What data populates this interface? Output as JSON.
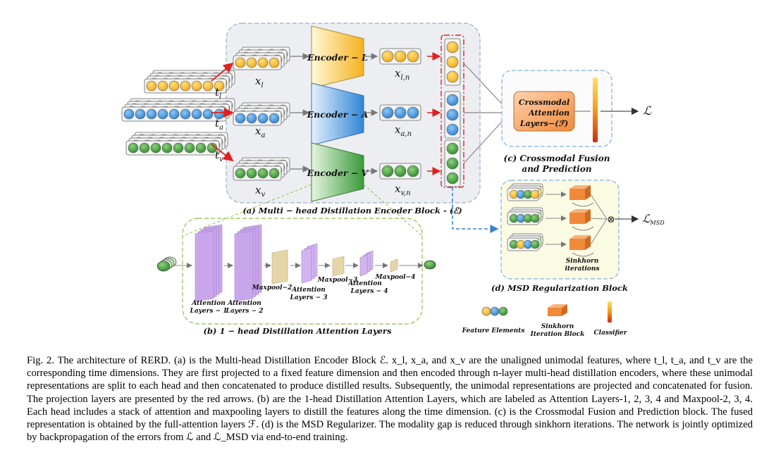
{
  "diagram": {
    "inputs": {
      "tl": "t",
      "tl_sub": "l",
      "ta": "t",
      "ta_sub": "a",
      "tv": "t",
      "tv_sub": "v"
    },
    "projected": {
      "xl": "x",
      "xl_sub": "l",
      "xa": "x",
      "xa_sub": "a",
      "xv": "x",
      "xv_sub": "v"
    },
    "encoders": {
      "l": "Encoder − L",
      "a": "Encoder − A",
      "v": "Encoder − V"
    },
    "outputs": {
      "xln": "x",
      "xln_sub": "l,n",
      "xan": "x",
      "xan_sub": "a,n",
      "xvn": "x",
      "xvn_sub": "v,n"
    },
    "block_a_label": "(a) Multi − head Distillation Encoder Block - (ℰ)",
    "fusion": {
      "box_line1": "Crossmodal",
      "box_line2": "Attention",
      "box_line3": "Layers−(ℱ)",
      "label_line1": "(c) Crossmodal Fusion",
      "label_line2": "and Prediction",
      "loss": "ℒ"
    },
    "msd": {
      "sinkhorn_line1": "Sinkhorn",
      "sinkhorn_line2": "iterations",
      "otimes": "⊗",
      "loss": "ℒ",
      "loss_sub": "MSD",
      "label": "(d) MSD Regularization Block"
    },
    "attention": {
      "layer1_line1": "Attention",
      "layer1_line2": "Layers − 1",
      "layer2_line1": "Attention",
      "layer2_line2": "Layers − 2",
      "layer3_line1": "Attention",
      "layer3_line2": "Layers − 3",
      "layer4_line1": "Attention",
      "layer4_line2": "Layers − 4",
      "maxpool2": "Maxpool−2",
      "maxpool3": "Maxpool−3",
      "maxpool4": "Maxpool−4",
      "label": "(b) 1 − head Distillation Attention Layers"
    },
    "legend": {
      "feature": "Feature Elements",
      "sinkhorn_line1": "Sinkhorn",
      "sinkhorn_line2": "Iteration Block",
      "classifier": "Classifier"
    },
    "colors": {
      "language": "#f5b21c",
      "audio": "#3c8fd8",
      "visual": "#3a9a3a",
      "projection_arrow": "#e02020",
      "dashed_red": "#e02020",
      "dashed_blue": "#3a7fd0",
      "dashed_green": "#8bc34a",
      "attention": "#c9a6ec",
      "maxpool": "#e6d3a6",
      "sinkhorn": "#f08a3a",
      "fusion_box": "#f4a36b"
    }
  },
  "caption": "Fig. 2.  The architecture of RERD. (a) is the Multi-head Distillation Encoder Block ℰ. x_l, x_a, and x_v are the unaligned unimodal features, where t_l, t_a, and t_v are the corresponding time dimensions. They are first projected to a fixed feature dimension and then encoded through n-layer multi-head distillation encoders, where these unimodal representations are split to each head and then concatenated to produce distilled results. Subsequently, the unimodal representations are projected and concatenated for fusion. The projection layers are presented by the red arrows. (b) are the 1-head Distillation Attention Layers, which are labeled as Attention Layers-1, 2, 3, 4 and Maxpool-2, 3, 4. Each head includes a stack of attention and maxpooling layers to distill the features along the time dimension. (c) is the Crossmodal Fusion and Prediction block. The fused representation is obtained by the full-attention layers ℱ. (d) is the MSD Regularizer. The modality gap is reduced through sinkhorn iterations. The network is jointly optimized by backpropagation of the errors from ℒ and ℒ_MSD via end-to-end training."
}
